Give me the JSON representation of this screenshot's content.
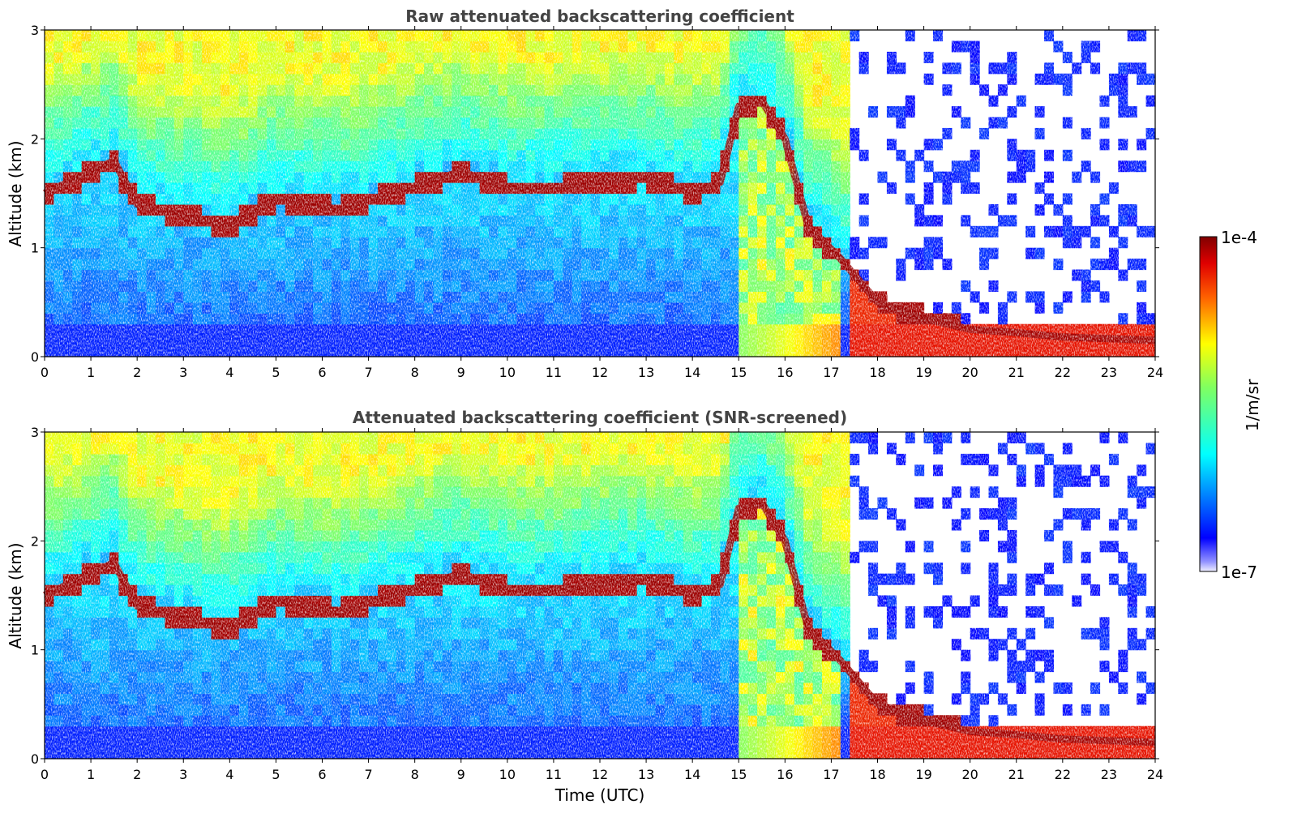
{
  "chart_data": {
    "type": "heatmap",
    "colormap": [
      "#f0f0ff",
      "#0000ff",
      "#00ffff",
      "#ffff00",
      "#ff0000",
      "#800000"
    ],
    "colorbar": {
      "label": "1/m/sr",
      "min_label": "1e-7",
      "max_label": "1e-4",
      "min": 1e-07,
      "max": 0.0001,
      "scale": "log"
    },
    "xlabel": "Time (UTC)",
    "panels": [
      {
        "title": "Raw attenuated backscattering coefficient",
        "ylabel": "Altitude (km)",
        "xlim": [
          0,
          24
        ],
        "ylim": [
          0,
          3
        ],
        "xticks": [
          "0",
          "1",
          "2",
          "3",
          "4",
          "5",
          "6",
          "7",
          "8",
          "9",
          "10",
          "11",
          "12",
          "13",
          "14",
          "15",
          "16",
          "17",
          "18",
          "19",
          "20",
          "21",
          "22",
          "23",
          "24"
        ],
        "yticks": [
          "0",
          "1",
          "2",
          "3"
        ],
        "cloud_layer_km": [
          [
            0,
            1.5
          ],
          [
            1.5,
            1.8
          ],
          [
            2,
            1.4
          ],
          [
            3,
            1.3
          ],
          [
            4,
            1.2
          ],
          [
            5,
            1.45
          ],
          [
            6.4,
            1.35
          ],
          [
            9,
            1.7
          ],
          [
            10,
            1.55
          ],
          [
            11,
            1.55
          ],
          [
            12,
            1.6
          ],
          [
            13,
            1.65
          ],
          [
            14,
            1.5
          ],
          [
            14.6,
            1.6
          ],
          [
            15,
            2.3
          ],
          [
            15.5,
            2.35
          ],
          [
            16,
            2.0
          ],
          [
            16.5,
            1.2
          ],
          [
            17.2,
            0.9
          ],
          [
            18,
            0.5
          ],
          [
            19,
            0.35
          ],
          [
            20,
            0.25
          ],
          [
            21,
            0.22
          ],
          [
            22,
            0.18
          ],
          [
            24,
            0.15
          ]
        ]
      },
      {
        "title": "Attenuated backscattering coefficient (SNR-screened)",
        "ylabel": "Altitude (km)",
        "xlim": [
          0,
          24
        ],
        "ylim": [
          0,
          3
        ],
        "xticks": [
          "0",
          "1",
          "2",
          "3",
          "4",
          "5",
          "6",
          "7",
          "8",
          "9",
          "10",
          "11",
          "12",
          "13",
          "14",
          "15",
          "16",
          "17",
          "18",
          "19",
          "20",
          "21",
          "22",
          "23",
          "24"
        ],
        "yticks": [
          "0",
          "1",
          "2",
          "3"
        ],
        "cloud_layer_km": [
          [
            0,
            1.5
          ],
          [
            1.5,
            1.8
          ],
          [
            2,
            1.4
          ],
          [
            3,
            1.3
          ],
          [
            4,
            1.2
          ],
          [
            5,
            1.45
          ],
          [
            6.4,
            1.35
          ],
          [
            9,
            1.7
          ],
          [
            10,
            1.55
          ],
          [
            11,
            1.55
          ],
          [
            12,
            1.6
          ],
          [
            13,
            1.65
          ],
          [
            14,
            1.5
          ],
          [
            14.6,
            1.6
          ],
          [
            15,
            2.3
          ],
          [
            15.5,
            2.35
          ],
          [
            16,
            2.0
          ],
          [
            16.5,
            1.2
          ],
          [
            17.2,
            0.9
          ],
          [
            18,
            0.5
          ],
          [
            19,
            0.35
          ],
          [
            20,
            0.25
          ],
          [
            21,
            0.22
          ],
          [
            22,
            0.18
          ],
          [
            24,
            0.15
          ]
        ]
      }
    ]
  }
}
